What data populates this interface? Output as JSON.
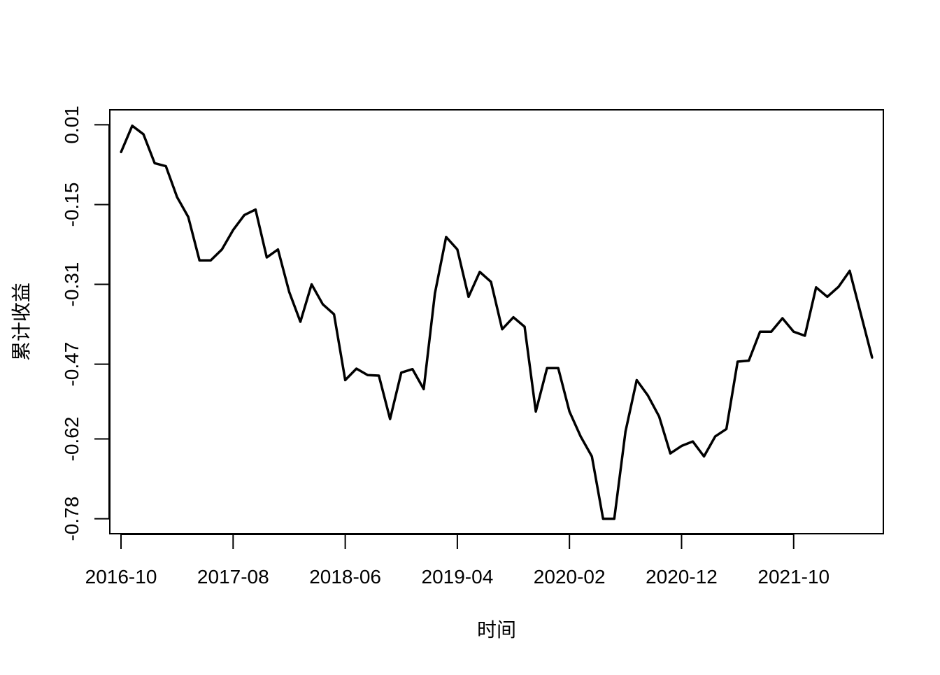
{
  "chart_data": {
    "type": "line",
    "title": "",
    "xlabel": "时间",
    "ylabel": "累计收益",
    "x_tick_labels": [
      "2016-10",
      "2017-08",
      "2018-06",
      "2019-04",
      "2020-02",
      "2020-12",
      "2021-10"
    ],
    "y_ticks": [
      0.01,
      -0.15,
      -0.31,
      -0.47,
      -0.62,
      -0.78
    ],
    "y_tick_labels": [
      "0.01",
      "-0.15",
      "-0.31",
      "-0.47",
      "-0.62",
      "-0.78"
    ],
    "xlim": [
      "2016-09",
      "2022-06"
    ],
    "ylim": [
      -0.81,
      0.04
    ],
    "grid": false,
    "line_color": "#000000",
    "x": [
      "2016-10",
      "2016-11",
      "2016-12",
      "2017-01",
      "2017-02",
      "2017-03",
      "2017-04",
      "2017-05",
      "2017-06",
      "2017-07",
      "2017-08",
      "2017-09",
      "2017-10",
      "2017-11",
      "2017-12",
      "2018-01",
      "2018-02",
      "2018-03",
      "2018-04",
      "2018-05",
      "2018-06",
      "2018-07",
      "2018-08",
      "2018-09",
      "2018-10",
      "2018-11",
      "2018-12",
      "2019-01",
      "2019-02",
      "2019-03",
      "2019-04",
      "2019-05",
      "2019-06",
      "2019-07",
      "2019-08",
      "2019-09",
      "2019-10",
      "2019-11",
      "2019-12",
      "2020-01",
      "2020-02",
      "2020-03",
      "2020-04",
      "2020-05",
      "2020-06",
      "2020-07",
      "2020-08",
      "2020-09",
      "2020-10",
      "2020-11",
      "2020-12",
      "2021-01",
      "2021-02",
      "2021-03",
      "2021-04",
      "2021-05",
      "2021-06",
      "2021-07",
      "2021-08",
      "2021-09",
      "2021-10",
      "2021-11",
      "2021-12",
      "2022-01",
      "2022-02",
      "2022-03",
      "2022-04",
      "2022-05"
    ],
    "series": [
      {
        "values": [
          -0.045,
          0.008,
          -0.009,
          -0.067,
          -0.073,
          -0.135,
          -0.175,
          -0.262,
          -0.262,
          -0.24,
          -0.201,
          -0.171,
          -0.16,
          -0.256,
          -0.24,
          -0.325,
          -0.385,
          -0.31,
          -0.35,
          -0.37,
          -0.502,
          -0.479,
          -0.492,
          -0.493,
          -0.58,
          -0.487,
          -0.48,
          -0.52,
          -0.328,
          -0.215,
          -0.24,
          -0.335,
          -0.285,
          -0.305,
          -0.4,
          -0.376,
          -0.395,
          -0.565,
          -0.478,
          -0.478,
          -0.565,
          -0.615,
          -0.655,
          -0.78,
          -0.78,
          -0.605,
          -0.502,
          -0.533,
          -0.575,
          -0.649,
          -0.634,
          -0.625,
          -0.655,
          -0.615,
          -0.6,
          -0.465,
          -0.463,
          -0.405,
          -0.405,
          -0.378,
          -0.405,
          -0.413,
          -0.316,
          -0.335,
          -0.315,
          -0.283,
          -0.37,
          -0.457
        ]
      }
    ]
  }
}
